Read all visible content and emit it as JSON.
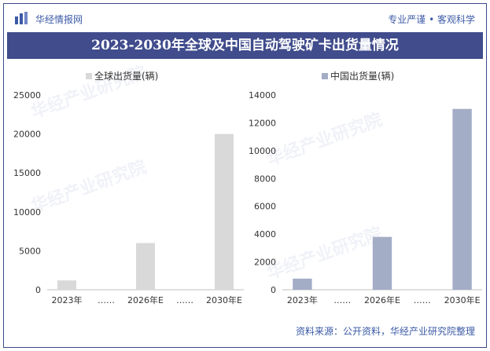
{
  "header": {
    "brand": "华经情报网",
    "slogan": "专业严谨 • 客观科学"
  },
  "title": "2023-2030年全球及中国自动驾驶矿卡出货量情况",
  "watermark": "华经产业研究院",
  "footer": {
    "source": "资料来源：公开资料，华经产业研究院整理"
  },
  "colors": {
    "title_bg": "#404c8c",
    "brand": "#3b5aa6",
    "global_bar": "#d9d9d9",
    "china_bar": "#a4adc6"
  },
  "chart_data": [
    {
      "type": "bar",
      "title": "",
      "legend": "全球出货量(辆)",
      "categories": [
        "2023年",
        "……",
        "2026年E",
        "……",
        "2030年E"
      ],
      "series": [
        {
          "name": "全球出货量(辆)",
          "values": [
            1200,
            null,
            6000,
            null,
            20000
          ]
        }
      ],
      "ylim": [
        0,
        25000
      ],
      "yticks": [
        0,
        5000,
        10000,
        15000,
        20000,
        25000
      ],
      "grid": false,
      "legend_position": "top"
    },
    {
      "type": "bar",
      "title": "",
      "legend": "中国出货量(辆)",
      "categories": [
        "2023年",
        "……",
        "2026年E",
        "……",
        "2030年E"
      ],
      "series": [
        {
          "name": "中国出货量(辆)",
          "values": [
            800,
            null,
            3800,
            null,
            13000
          ]
        }
      ],
      "ylim": [
        0,
        14000
      ],
      "yticks": [
        0,
        2000,
        4000,
        6000,
        8000,
        10000,
        12000,
        14000
      ],
      "grid": false,
      "legend_position": "top"
    }
  ]
}
